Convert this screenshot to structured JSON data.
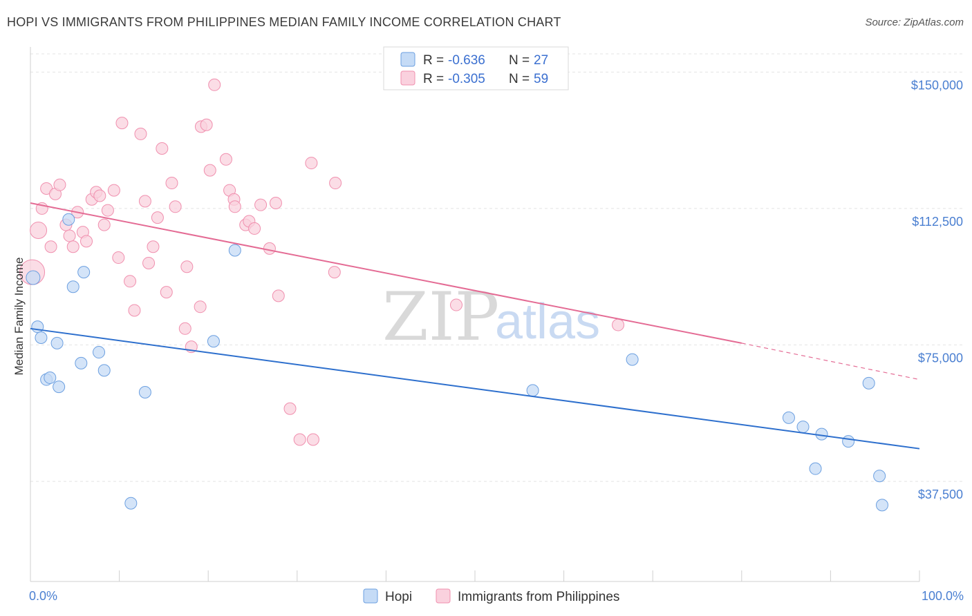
{
  "title": "HOPI VS IMMIGRANTS FROM PHILIPPINES MEDIAN FAMILY INCOME CORRELATION CHART",
  "source": "Source: ZipAtlas.com",
  "watermark": {
    "zip": "ZIP",
    "atlas": "atlas"
  },
  "chart_data": {
    "type": "scatter",
    "title": "HOPI VS IMMIGRANTS FROM PHILIPPINES MEDIAN FAMILY INCOME CORRELATION CHART",
    "ylabel": "Median Family Income",
    "xlabel": "",
    "xlim": [
      0,
      100
    ],
    "ylim": [
      10000,
      155000
    ],
    "x_tick_labels": [
      "0.0%",
      "100.0%"
    ],
    "y_ticks": [
      37500,
      75000,
      112500,
      150000
    ],
    "y_tick_labels": [
      "$37,500",
      "$75,000",
      "$112,500",
      "$150,000"
    ],
    "grid": true,
    "legend_placement": "top-center",
    "series": [
      {
        "name": "Hopi",
        "color": "#6b9fe0",
        "fill": "#c5dbf6",
        "R": "-0.636",
        "N": "27",
        "trend": {
          "x": [
            0,
            100
          ],
          "y": [
            79500,
            46500
          ],
          "color": "#2d6fcd"
        },
        "points": [
          {
            "x": 0.3,
            "y": 93500,
            "r": 10
          },
          {
            "x": 0.8,
            "y": 80000
          },
          {
            "x": 1.2,
            "y": 77000
          },
          {
            "x": 1.8,
            "y": 65500
          },
          {
            "x": 2.2,
            "y": 66000
          },
          {
            "x": 3.0,
            "y": 75500
          },
          {
            "x": 3.2,
            "y": 63500
          },
          {
            "x": 4.3,
            "y": 109500
          },
          {
            "x": 4.8,
            "y": 91000
          },
          {
            "x": 5.7,
            "y": 70000
          },
          {
            "x": 6.0,
            "y": 95000
          },
          {
            "x": 7.7,
            "y": 73000
          },
          {
            "x": 8.3,
            "y": 68000
          },
          {
            "x": 11.3,
            "y": 31500
          },
          {
            "x": 12.9,
            "y": 62000
          },
          {
            "x": 20.6,
            "y": 76000
          },
          {
            "x": 23.0,
            "y": 101000
          },
          {
            "x": 56.5,
            "y": 62500
          },
          {
            "x": 67.7,
            "y": 71000
          },
          {
            "x": 85.3,
            "y": 55000
          },
          {
            "x": 86.9,
            "y": 52500
          },
          {
            "x": 88.3,
            "y": 41000
          },
          {
            "x": 89.0,
            "y": 50500
          },
          {
            "x": 92.0,
            "y": 48500
          },
          {
            "x": 94.3,
            "y": 64500
          },
          {
            "x": 95.5,
            "y": 39000
          },
          {
            "x": 95.8,
            "y": 31000
          }
        ]
      },
      {
        "name": "Immigrants from Philippines",
        "color": "#f08fae",
        "fill": "#fad1de",
        "R": "-0.305",
        "N": "59",
        "trend": {
          "x": [
            0,
            80
          ],
          "y": [
            114000,
            75500
          ],
          "dashed_to": [
            100,
            65500
          ],
          "color": "#e46b94"
        },
        "points": [
          {
            "x": 0.2,
            "y": 95000,
            "r": 18
          },
          {
            "x": 0.9,
            "y": 106500,
            "r": 12
          },
          {
            "x": 1.3,
            "y": 112500
          },
          {
            "x": 1.8,
            "y": 118000
          },
          {
            "x": 2.3,
            "y": 102000
          },
          {
            "x": 2.8,
            "y": 116500
          },
          {
            "x": 3.3,
            "y": 119000
          },
          {
            "x": 4.0,
            "y": 108000
          },
          {
            "x": 4.4,
            "y": 105000
          },
          {
            "x": 4.8,
            "y": 102000
          },
          {
            "x": 5.3,
            "y": 111500
          },
          {
            "x": 5.9,
            "y": 106000
          },
          {
            "x": 6.3,
            "y": 103500
          },
          {
            "x": 6.9,
            "y": 115000
          },
          {
            "x": 7.4,
            "y": 117000
          },
          {
            "x": 7.8,
            "y": 116000
          },
          {
            "x": 8.3,
            "y": 108000
          },
          {
            "x": 8.7,
            "y": 112000
          },
          {
            "x": 9.4,
            "y": 117500
          },
          {
            "x": 9.9,
            "y": 99000
          },
          {
            "x": 10.3,
            "y": 136000
          },
          {
            "x": 11.2,
            "y": 92500
          },
          {
            "x": 11.7,
            "y": 84500
          },
          {
            "x": 12.4,
            "y": 133000
          },
          {
            "x": 12.9,
            "y": 114500
          },
          {
            "x": 13.3,
            "y": 97500
          },
          {
            "x": 13.8,
            "y": 102000
          },
          {
            "x": 14.3,
            "y": 110000
          },
          {
            "x": 14.8,
            "y": 129000
          },
          {
            "x": 15.3,
            "y": 89500
          },
          {
            "x": 15.9,
            "y": 119500
          },
          {
            "x": 16.3,
            "y": 113000
          },
          {
            "x": 17.4,
            "y": 79500
          },
          {
            "x": 17.6,
            "y": 96500
          },
          {
            "x": 18.1,
            "y": 74500
          },
          {
            "x": 19.1,
            "y": 85500
          },
          {
            "x": 19.2,
            "y": 135000
          },
          {
            "x": 19.8,
            "y": 135500
          },
          {
            "x": 20.2,
            "y": 123000
          },
          {
            "x": 20.7,
            "y": 146500
          },
          {
            "x": 22.0,
            "y": 126000
          },
          {
            "x": 22.4,
            "y": 117500
          },
          {
            "x": 22.9,
            "y": 115000
          },
          {
            "x": 23.0,
            "y": 113000
          },
          {
            "x": 24.2,
            "y": 108000
          },
          {
            "x": 24.6,
            "y": 109000
          },
          {
            "x": 25.2,
            "y": 107000
          },
          {
            "x": 25.9,
            "y": 113500
          },
          {
            "x": 26.9,
            "y": 101500
          },
          {
            "x": 27.6,
            "y": 114000
          },
          {
            "x": 27.9,
            "y": 88500
          },
          {
            "x": 29.2,
            "y": 57500
          },
          {
            "x": 30.3,
            "y": 49000
          },
          {
            "x": 31.6,
            "y": 125000
          },
          {
            "x": 31.8,
            "y": 49000
          },
          {
            "x": 34.2,
            "y": 95000
          },
          {
            "x": 34.3,
            "y": 119500
          },
          {
            "x": 47.9,
            "y": 86000
          },
          {
            "x": 66.1,
            "y": 80500
          }
        ]
      }
    ]
  }
}
